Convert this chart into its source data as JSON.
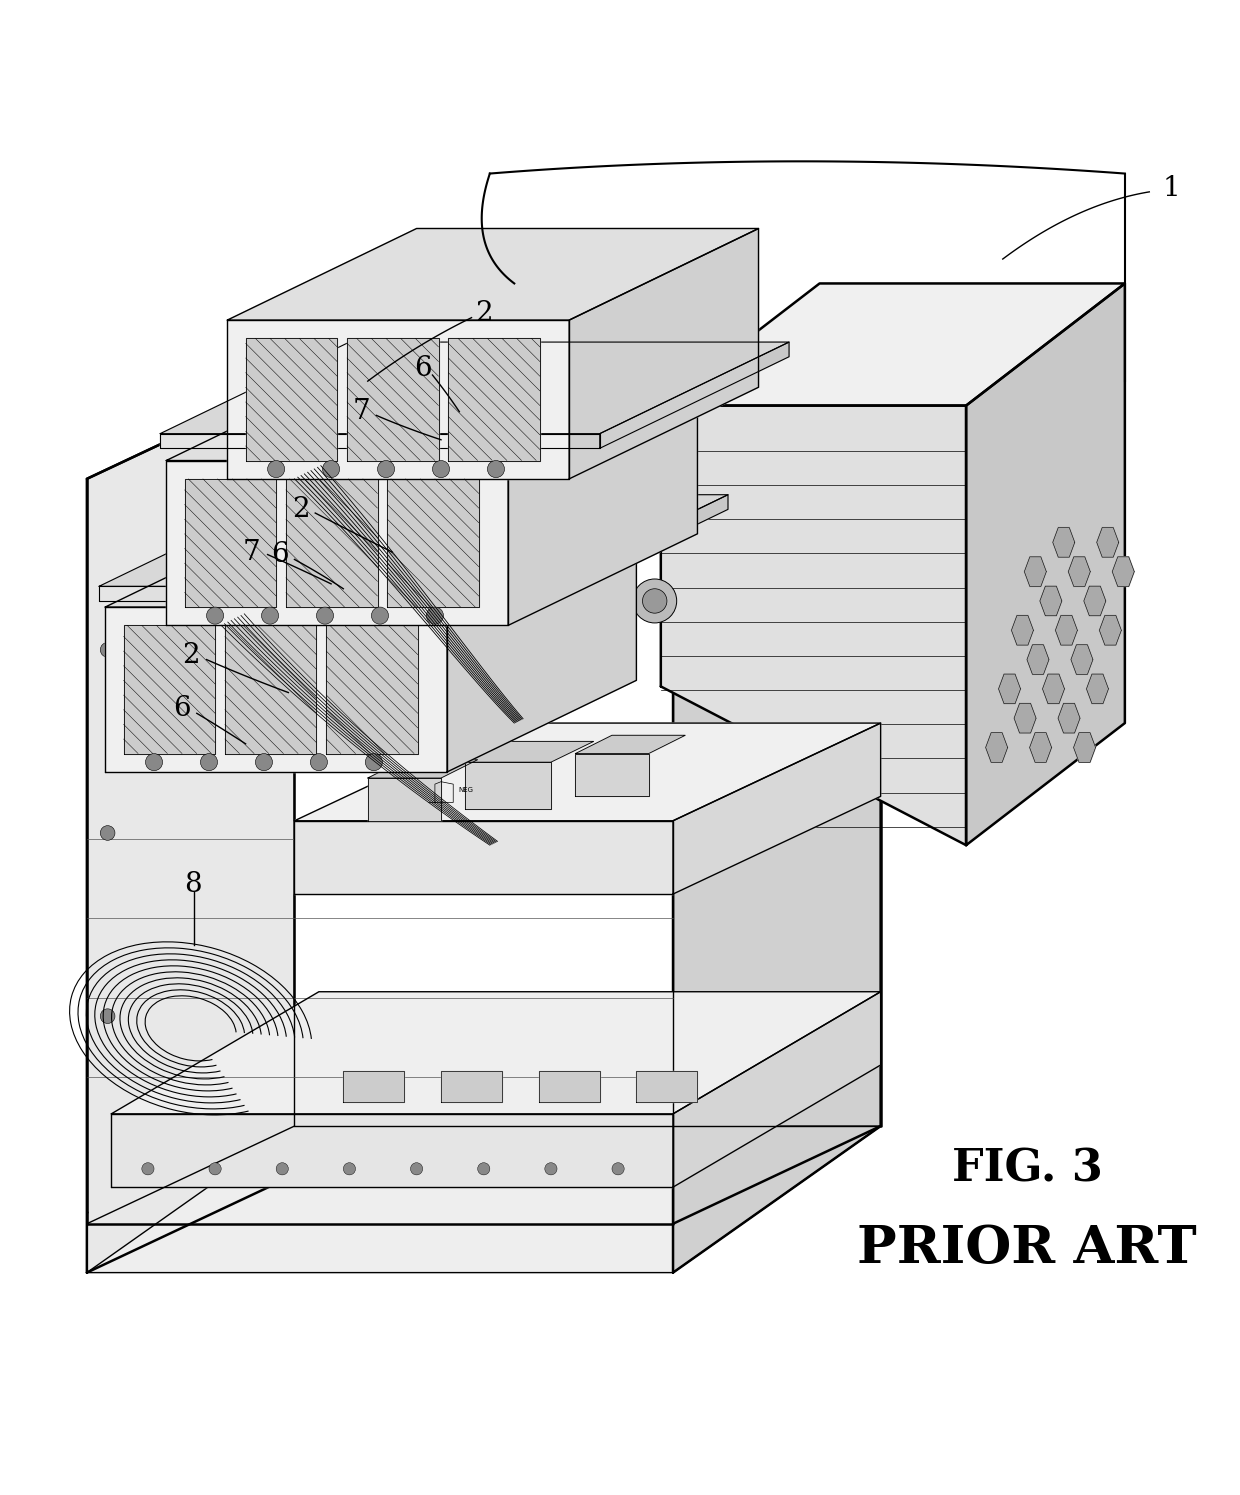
{
  "bg_color": "#ffffff",
  "line_color": "#000000",
  "fig_width": 12.4,
  "fig_height": 14.95,
  "title": "FIG. 3",
  "subtitle": "PRIOR ART",
  "title_fontsize": 32,
  "subtitle_fontsize": 38,
  "ref_fontsize": 20
}
